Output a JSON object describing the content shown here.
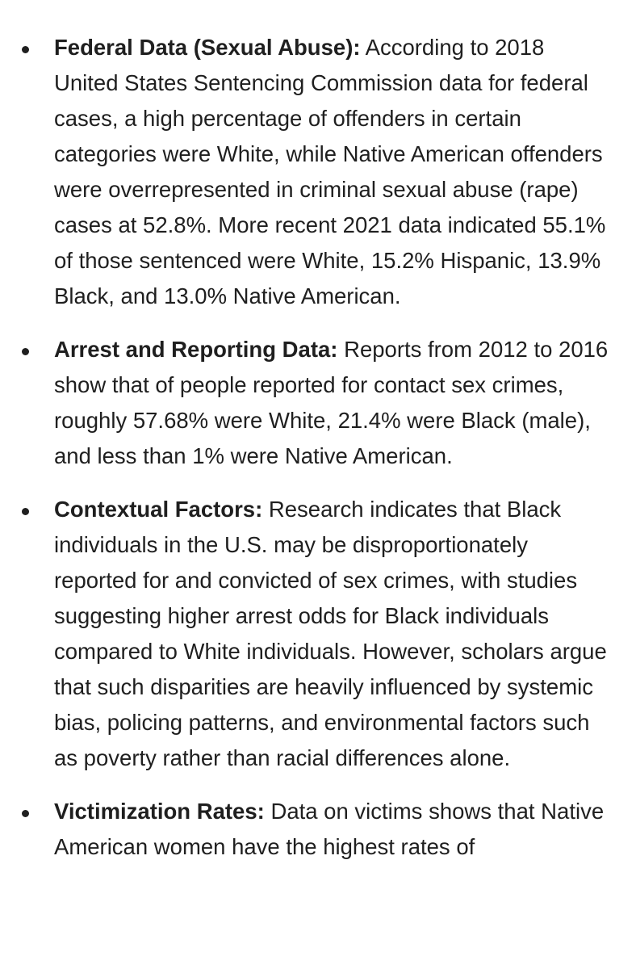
{
  "bullets": [
    {
      "heading": "Federal Data (Sexual Abuse):",
      "text": " According to 2018 United States Sentencing Commission data for federal cases, a high percentage of offenders in certain categories were White, while Native American offenders were overrepresented in criminal sexual abuse (rape) cases at 52.8%. More recent 2021 data indicated 55.1% of those sentenced were White, 15.2% Hispanic, 13.9% Black, and 13.0% Native American."
    },
    {
      "heading": "Arrest and Reporting Data:",
      "text": " Reports from 2012 to 2016 show that of people reported for contact sex crimes, roughly 57.68% were White, 21.4% were Black (male), and less than 1% were Native American."
    },
    {
      "heading": "Contextual Factors:",
      "text": " Research indicates that Black individuals in the U.S. may be disproportionately reported for and convicted of sex crimes, with studies suggesting higher arrest odds for Black individuals compared to White individuals. However, scholars argue that such disparities are heavily influenced by systemic bias, policing patterns, and environmental factors such as poverty rather than racial differences alone."
    },
    {
      "heading": "Victimization Rates:",
      "text": " Data on victims shows that Native American women have the highest rates of"
    }
  ]
}
